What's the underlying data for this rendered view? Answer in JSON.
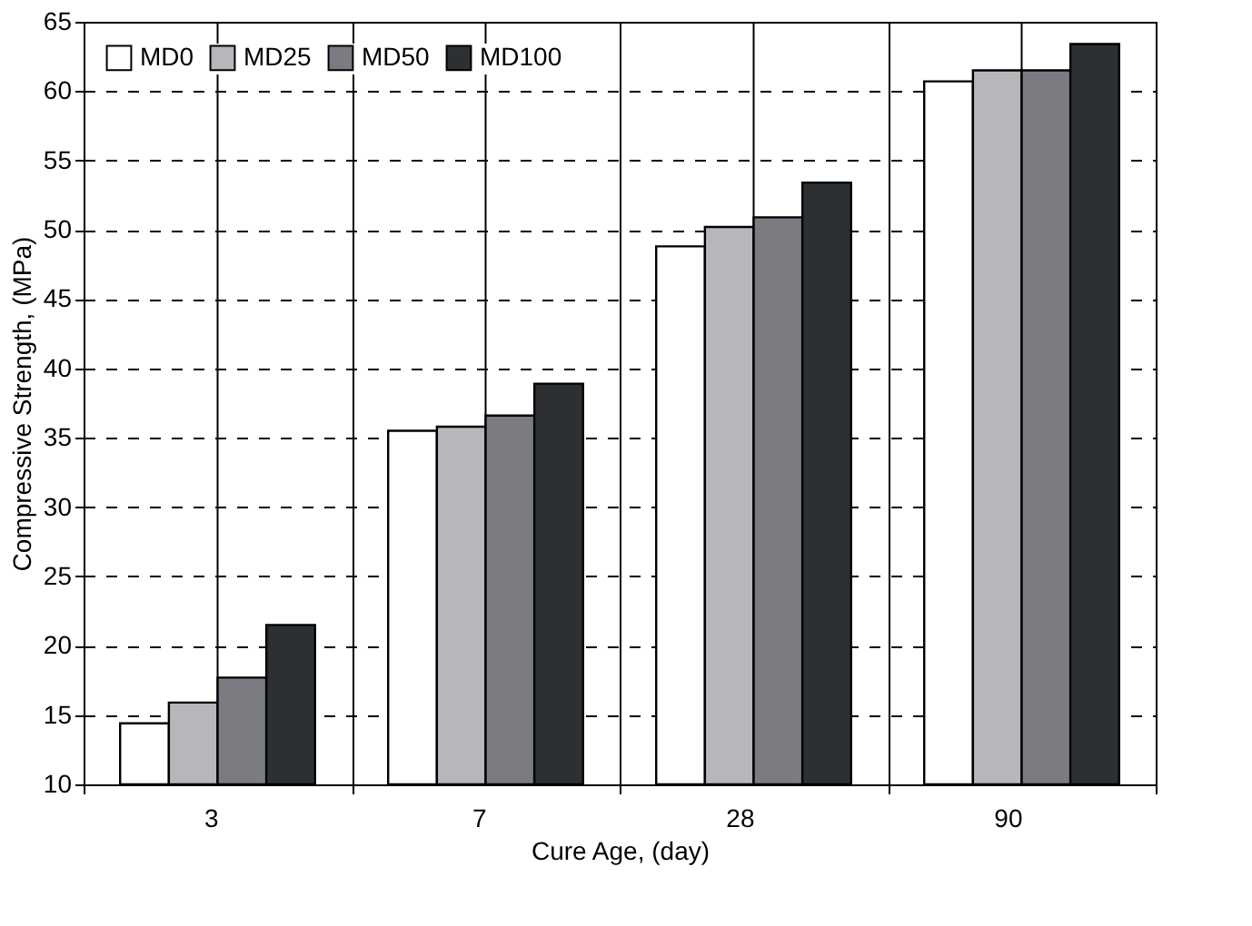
{
  "chart_data": {
    "type": "bar",
    "xlabel": "Cure Age, (day)",
    "ylabel": "Compressive Strength, (MPa)",
    "categories": [
      "3",
      "7",
      "28",
      "90"
    ],
    "series": [
      {
        "name": "MD0",
        "color": "#ffffff",
        "values": [
          14.4,
          35.5,
          48.8,
          60.7
        ]
      },
      {
        "name": "MD25",
        "color": "#b6b7bb",
        "values": [
          15.9,
          35.8,
          50.2,
          61.5
        ]
      },
      {
        "name": "MD50",
        "color": "#7b7c81",
        "values": [
          17.7,
          36.6,
          50.9,
          61.5
        ]
      },
      {
        "name": "MD100",
        "color": "#2d3033",
        "values": [
          21.5,
          38.9,
          53.4,
          63.4
        ]
      }
    ],
    "ylim": [
      10,
      65
    ],
    "yticks": [
      10,
      15,
      20,
      25,
      30,
      35,
      40,
      45,
      50,
      55,
      60,
      65
    ],
    "grid": true,
    "legend": "top left"
  }
}
